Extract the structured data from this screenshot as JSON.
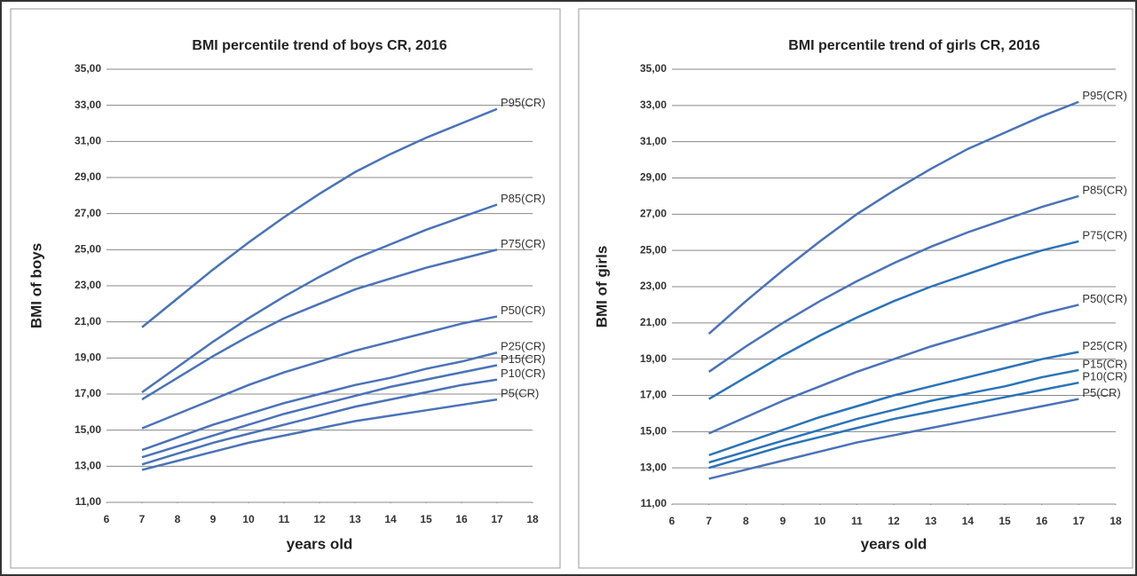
{
  "chart_data": [
    {
      "type": "line",
      "title": "BMI percentile trend of boys CR, 2016",
      "x_label": "years old",
      "y_label": "BMI of boys",
      "x": [
        7,
        8,
        9,
        10,
        11,
        12,
        13,
        14,
        15,
        16,
        17
      ],
      "xlim": [
        6,
        18
      ],
      "xticks": [
        6,
        7,
        8,
        9,
        10,
        11,
        12,
        13,
        14,
        15,
        16,
        17,
        18
      ],
      "ylim": [
        11,
        35
      ],
      "yticks": [
        {
          "value": 11,
          "label": "11,00"
        },
        {
          "value": 13,
          "label": "13,00"
        },
        {
          "value": 15,
          "label": "15,00"
        },
        {
          "value": 17,
          "label": "17,00"
        },
        {
          "value": 19,
          "label": "19,00"
        },
        {
          "value": 21,
          "label": "21,00"
        },
        {
          "value": 23,
          "label": "23,00"
        },
        {
          "value": 25,
          "label": "25,00"
        },
        {
          "value": 27,
          "label": "27,00"
        },
        {
          "value": 29,
          "label": "29,00"
        },
        {
          "value": 31,
          "label": "31,00"
        },
        {
          "value": 33,
          "label": "33,00"
        },
        {
          "value": 35,
          "label": "35,00"
        }
      ],
      "grid": true,
      "series": [
        {
          "name": "P95(CR)",
          "color": "#4a72b8",
          "values": [
            20.7,
            22.3,
            23.9,
            25.4,
            26.8,
            28.1,
            29.3,
            30.3,
            31.2,
            32.0,
            32.8
          ]
        },
        {
          "name": "P85(CR)",
          "color": "#4a72b8",
          "values": [
            17.1,
            18.5,
            19.9,
            21.2,
            22.4,
            23.5,
            24.5,
            25.3,
            26.1,
            26.8,
            27.5
          ]
        },
        {
          "name": "P75(CR)",
          "color": "#4a72b8",
          "values": [
            16.7,
            17.9,
            19.1,
            20.2,
            21.2,
            22.0,
            22.8,
            23.4,
            24.0,
            24.5,
            25.0
          ]
        },
        {
          "name": "P50(CR)",
          "color": "#4a72b8",
          "values": [
            15.1,
            15.9,
            16.7,
            17.5,
            18.2,
            18.8,
            19.4,
            19.9,
            20.4,
            20.9,
            21.3
          ]
        },
        {
          "name": "P25(CR)",
          "color": "#4a72b8",
          "values": [
            13.9,
            14.6,
            15.3,
            15.9,
            16.5,
            17.0,
            17.5,
            17.9,
            18.4,
            18.8,
            19.3
          ]
        },
        {
          "name": "P15(CR)",
          "color": "#4a72b8",
          "values": [
            13.5,
            14.1,
            14.7,
            15.3,
            15.9,
            16.4,
            16.9,
            17.4,
            17.8,
            18.2,
            18.6
          ]
        },
        {
          "name": "P10(CR)",
          "color": "#4a72b8",
          "values": [
            13.1,
            13.7,
            14.3,
            14.8,
            15.3,
            15.8,
            16.3,
            16.7,
            17.1,
            17.5,
            17.8
          ]
        },
        {
          "name": "P5(CR)",
          "color": "#4a72b8",
          "values": [
            12.8,
            13.3,
            13.8,
            14.3,
            14.7,
            15.1,
            15.5,
            15.8,
            16.1,
            16.4,
            16.7
          ]
        }
      ]
    },
    {
      "type": "line",
      "title": "BMI percentile trend of girls CR, 2016",
      "x_label": "years old",
      "y_label": "BMI of girls",
      "x": [
        7,
        8,
        9,
        10,
        11,
        12,
        13,
        14,
        15,
        16,
        17
      ],
      "xlim": [
        6,
        18
      ],
      "xticks": [
        6,
        7,
        8,
        9,
        10,
        11,
        12,
        13,
        14,
        15,
        16,
        17,
        18
      ],
      "ylim": [
        11,
        35
      ],
      "yticks": [
        {
          "value": 11,
          "label": "11,00"
        },
        {
          "value": 13,
          "label": "13,00"
        },
        {
          "value": 15,
          "label": "15,00"
        },
        {
          "value": 17,
          "label": "17,00"
        },
        {
          "value": 19,
          "label": "19,00"
        },
        {
          "value": 21,
          "label": "21,00"
        },
        {
          "value": 23,
          "label": "23,00"
        },
        {
          "value": 25,
          "label": "25,00"
        },
        {
          "value": 27,
          "label": "27,00"
        },
        {
          "value": 29,
          "label": "29,00"
        },
        {
          "value": 31,
          "label": "31,00"
        },
        {
          "value": 33,
          "label": "33,00"
        },
        {
          "value": 35,
          "label": "35,00"
        }
      ],
      "grid": true,
      "series": [
        {
          "name": "P95(CR)",
          "color": "#4a72b8",
          "values": [
            20.4,
            22.2,
            23.9,
            25.5,
            27.0,
            28.3,
            29.5,
            30.6,
            31.5,
            32.4,
            33.2
          ]
        },
        {
          "name": "P85(CR)",
          "color": "#4a72b8",
          "values": [
            18.3,
            19.7,
            21.0,
            22.2,
            23.3,
            24.3,
            25.2,
            26.0,
            26.7,
            27.4,
            28.0
          ]
        },
        {
          "name": "P75(CR)",
          "color": "#2a73b8",
          "values": [
            16.8,
            18.0,
            19.2,
            20.3,
            21.3,
            22.2,
            23.0,
            23.7,
            24.4,
            25.0,
            25.5
          ]
        },
        {
          "name": "P50(CR)",
          "color": "#4a72b8",
          "values": [
            14.9,
            15.8,
            16.7,
            17.5,
            18.3,
            19.0,
            19.7,
            20.3,
            20.9,
            21.5,
            22.0
          ]
        },
        {
          "name": "P25(CR)",
          "color": "#2a73b8",
          "values": [
            13.7,
            14.4,
            15.1,
            15.8,
            16.4,
            17.0,
            17.5,
            18.0,
            18.5,
            19.0,
            19.4
          ]
        },
        {
          "name": "P15(CR)",
          "color": "#2a73b8",
          "values": [
            13.3,
            13.9,
            14.5,
            15.1,
            15.7,
            16.2,
            16.7,
            17.1,
            17.5,
            18.0,
            18.4
          ]
        },
        {
          "name": "P10(CR)",
          "color": "#2a73b8",
          "values": [
            13.0,
            13.6,
            14.2,
            14.7,
            15.2,
            15.7,
            16.1,
            16.5,
            16.9,
            17.3,
            17.7
          ]
        },
        {
          "name": "P5(CR)",
          "color": "#4a72b8",
          "values": [
            12.4,
            12.9,
            13.4,
            13.9,
            14.4,
            14.8,
            15.2,
            15.6,
            16.0,
            16.4,
            16.8
          ]
        }
      ]
    }
  ]
}
